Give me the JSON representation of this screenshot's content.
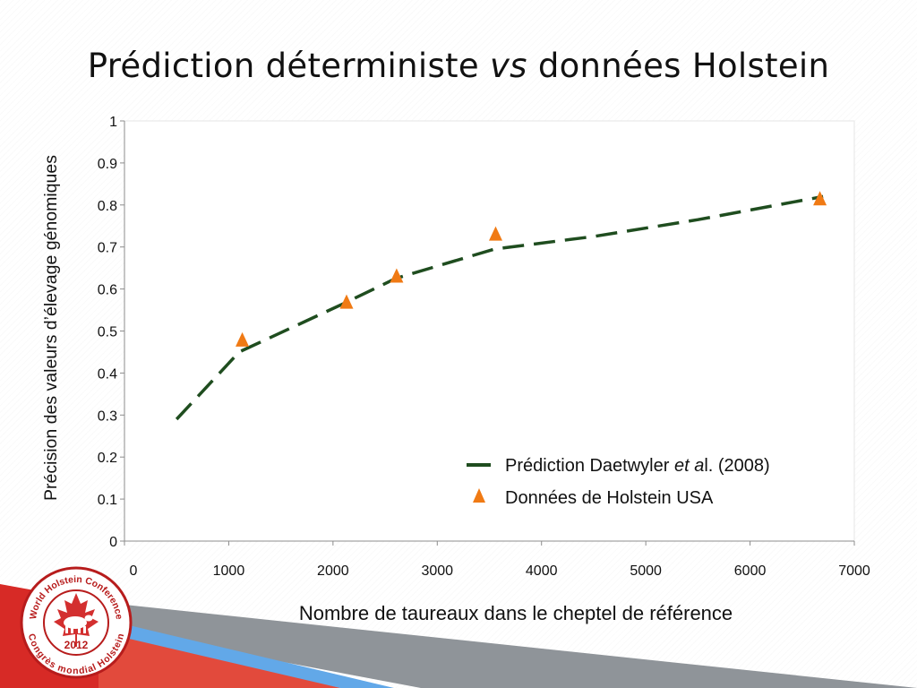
{
  "slide": {
    "title_part1": "Prédiction déterministe ",
    "title_italic": "vs",
    "title_part2": " données Holstein"
  },
  "logo": {
    "text_top": "World Holstein Conference",
    "text_bottom": "Congrès mondial Holstein",
    "year": "2012",
    "icon": "cow-on-maple-leaf-icon"
  },
  "chart_data": {
    "type": "line",
    "xlabel": "Nombre de taureaux dans le cheptel de référence",
    "ylabel": "Précision des valeurs d’élevage génomiques",
    "xlim": [
      0,
      7000
    ],
    "ylim": [
      0,
      1
    ],
    "x_ticks": [
      "0",
      "1000",
      "2000",
      "3000",
      "4000",
      "5000",
      "6000",
      "7000"
    ],
    "y_ticks": [
      "0",
      "0.1",
      "0.2",
      "0.3",
      "0.4",
      "0.5",
      "0.6",
      "0.7",
      "0.8",
      "0.9",
      "1"
    ],
    "grid": false,
    "legend_position": "bottom-right",
    "series": [
      {
        "name": "Prédiction Daetwyler ",
        "name_italic": "et a",
        "name_suffix": "l. (2008)",
        "style": "dashed-line",
        "color": "#1f4d1f",
        "x": [
          500,
          1100,
          2100,
          2600,
          3550,
          4500,
          5500,
          6700
        ],
        "y": [
          0.29,
          0.45,
          0.565,
          0.625,
          0.695,
          0.725,
          0.765,
          0.82
        ]
      },
      {
        "name": "Données de Holstein USA",
        "style": "triangle-markers",
        "color": "#f07a14",
        "x": [
          1130,
          2130,
          2610,
          3560,
          6670
        ],
        "y": [
          0.478,
          0.568,
          0.63,
          0.73,
          0.814
        ]
      }
    ]
  }
}
